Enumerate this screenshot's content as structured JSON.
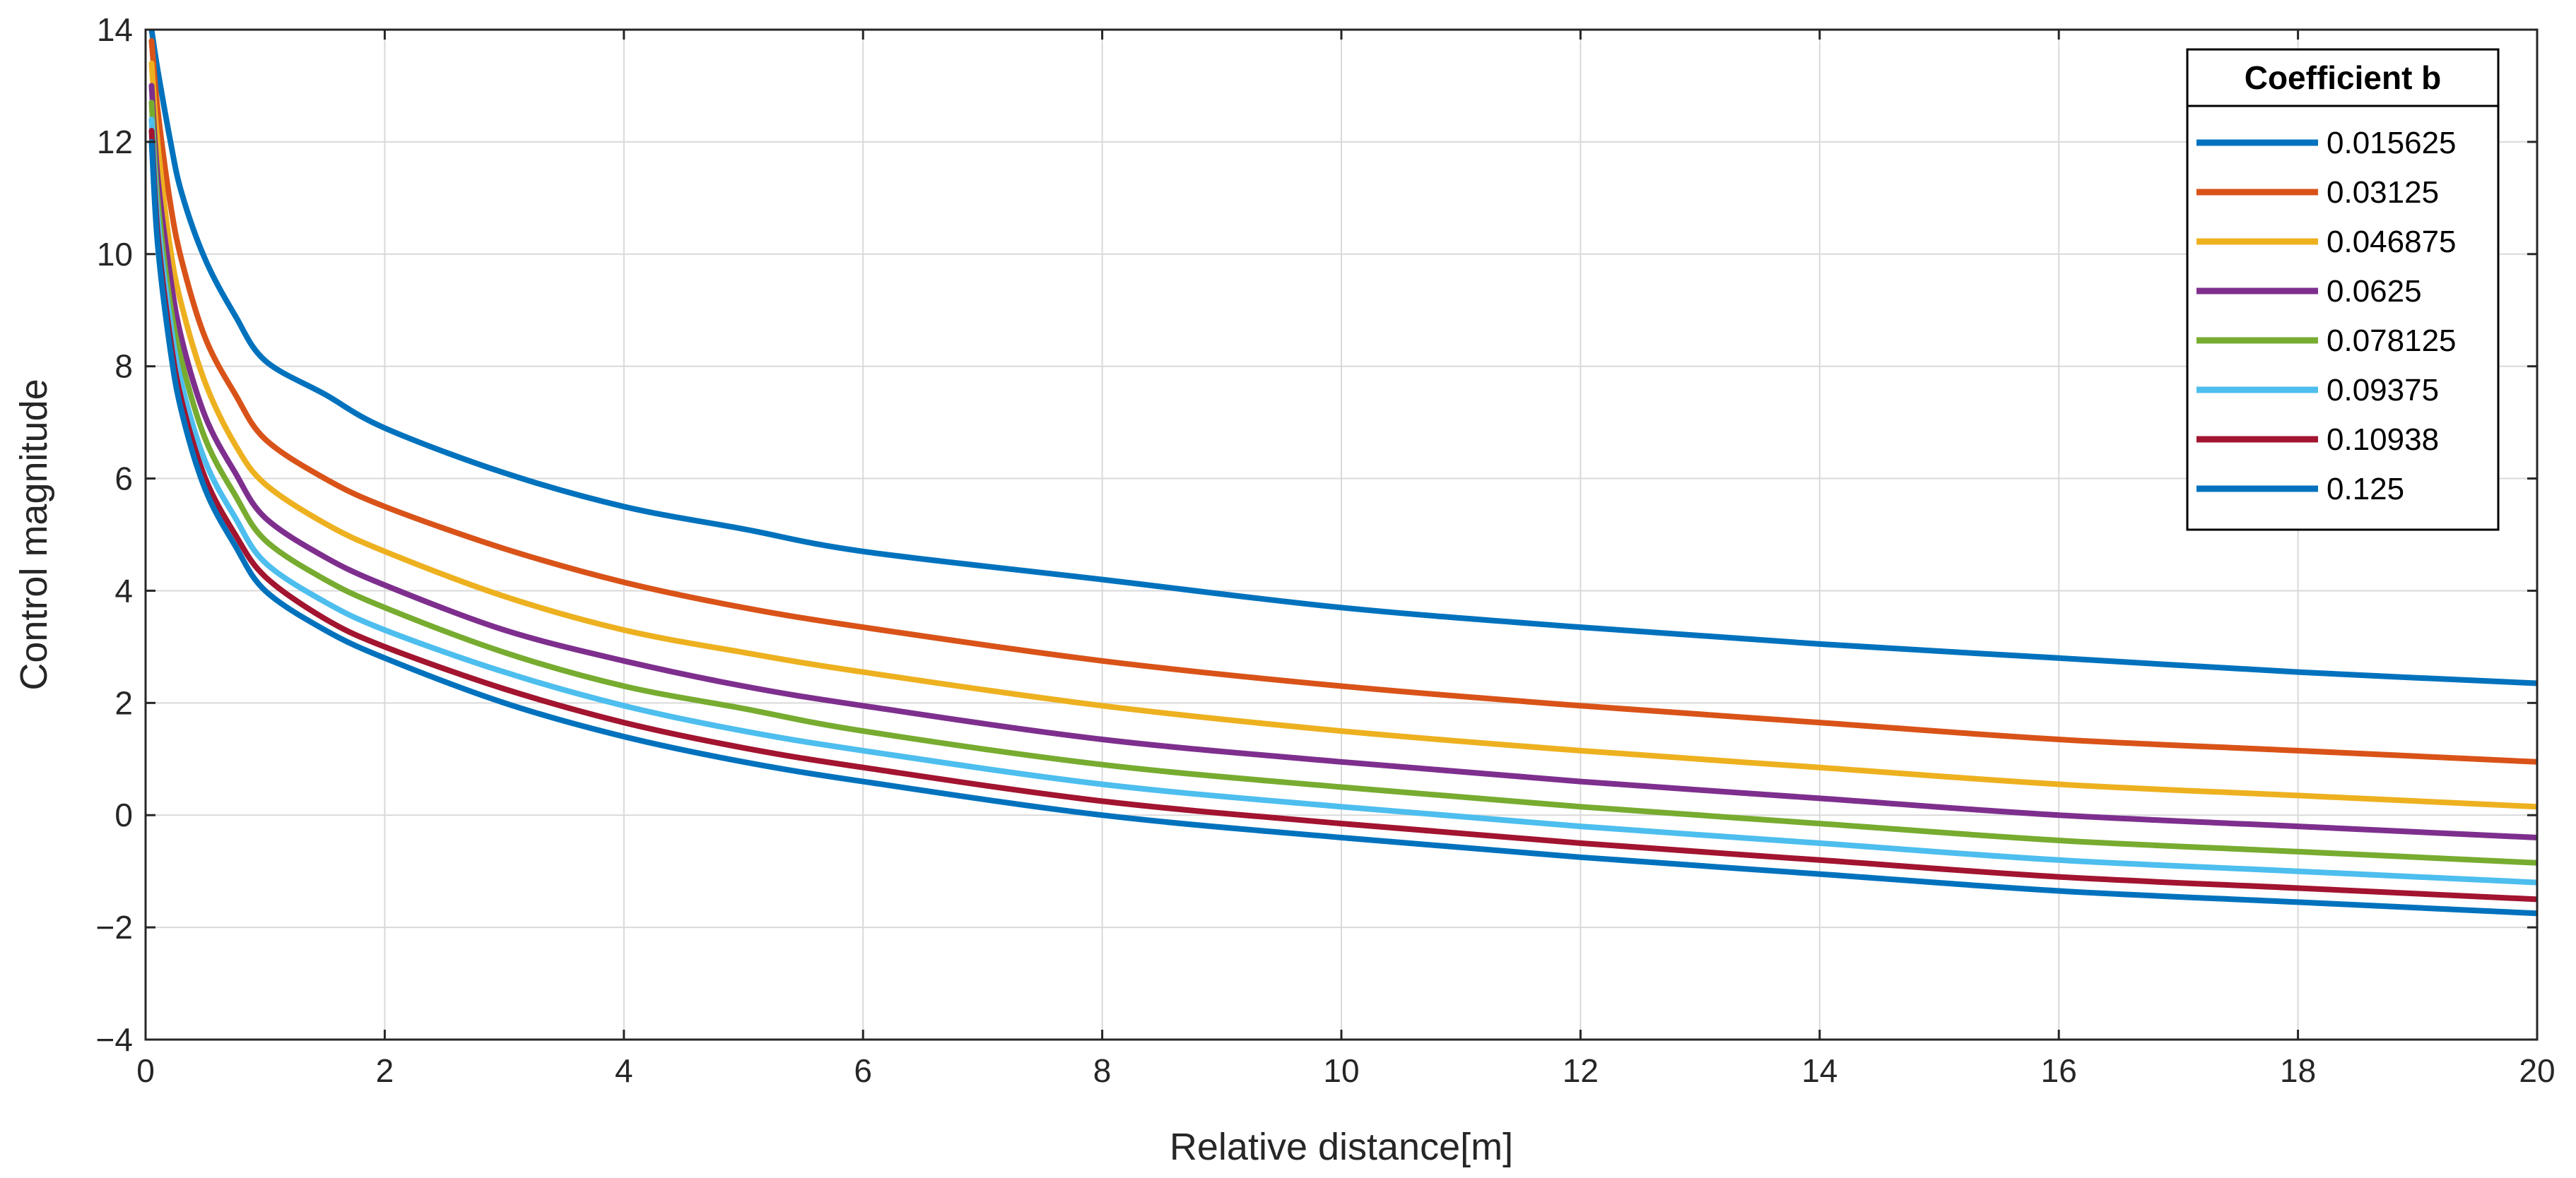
{
  "chart_data": {
    "type": "line",
    "title": "",
    "xlabel": "Relative distance[m]",
    "ylabel": "Control magnitude",
    "xlim": [
      0,
      20
    ],
    "ylim": [
      -4,
      14
    ],
    "xticks": [
      0,
      2,
      4,
      6,
      8,
      10,
      12,
      14,
      16,
      18,
      20
    ],
    "yticks": [
      -4,
      -2,
      0,
      2,
      4,
      6,
      8,
      10,
      12,
      14
    ],
    "xtick_labels": [
      "0",
      "2",
      "4",
      "6",
      "8",
      "10",
      "12",
      "14",
      "16",
      "18",
      "20"
    ],
    "ytick_labels": [
      "−4",
      "−2",
      "0",
      "2",
      "4",
      "6",
      "8",
      "10",
      "12",
      "14"
    ],
    "grid": true,
    "legend": {
      "title": "Coefficient b",
      "position": "top-right"
    },
    "x": [
      0.05,
      0.1,
      0.2,
      0.3,
      0.5,
      0.75,
      1,
      1.5,
      2,
      3,
      4,
      5,
      6,
      8,
      10,
      12,
      14,
      16,
      18,
      20
    ],
    "series": [
      {
        "name": "0.015625",
        "color": "#0072BD",
        "values": [
          14.0,
          13.3,
          12.1,
          11.1,
          9.9,
          8.9,
          8.1,
          7.5,
          6.9,
          6.1,
          5.5,
          5.1,
          4.7,
          4.2,
          3.7,
          3.35,
          3.05,
          2.8,
          2.55,
          2.35
        ]
      },
      {
        "name": "0.03125",
        "color": "#D95319",
        "values": [
          13.8,
          12.6,
          11.0,
          9.9,
          8.5,
          7.5,
          6.7,
          6.0,
          5.5,
          4.75,
          4.15,
          3.7,
          3.35,
          2.75,
          2.3,
          1.95,
          1.65,
          1.35,
          1.15,
          0.95
        ]
      },
      {
        "name": "0.046875",
        "color": "#EDB120",
        "values": [
          13.4,
          12.0,
          10.2,
          9.1,
          7.7,
          6.6,
          5.9,
          5.2,
          4.7,
          3.9,
          3.3,
          2.9,
          2.55,
          1.95,
          1.5,
          1.15,
          0.85,
          0.55,
          0.35,
          0.15
        ]
      },
      {
        "name": "0.0625",
        "color": "#7E2F8E",
        "values": [
          13.0,
          11.4,
          9.7,
          8.5,
          7.1,
          6.1,
          5.3,
          4.6,
          4.1,
          3.3,
          2.75,
          2.3,
          1.95,
          1.35,
          0.95,
          0.6,
          0.3,
          0.0,
          -0.2,
          -0.4
        ]
      },
      {
        "name": "0.078125",
        "color": "#77AC30",
        "values": [
          12.7,
          11.0,
          9.2,
          8.1,
          6.7,
          5.7,
          4.9,
          4.2,
          3.7,
          2.9,
          2.3,
          1.9,
          1.5,
          0.9,
          0.5,
          0.15,
          -0.15,
          -0.45,
          -0.65,
          -0.85
        ]
      },
      {
        "name": "0.09375",
        "color": "#4DBEEE",
        "values": [
          12.4,
          10.7,
          8.9,
          7.7,
          6.3,
          5.3,
          4.5,
          3.8,
          3.3,
          2.55,
          1.95,
          1.5,
          1.15,
          0.55,
          0.15,
          -0.2,
          -0.5,
          -0.8,
          -1.0,
          -1.2
        ]
      },
      {
        "name": "0.10938",
        "color": "#A2142F",
        "values": [
          12.2,
          10.4,
          8.6,
          7.4,
          6.0,
          5.0,
          4.25,
          3.5,
          3.0,
          2.25,
          1.65,
          1.2,
          0.85,
          0.25,
          -0.15,
          -0.5,
          -0.8,
          -1.1,
          -1.3,
          -1.5
        ]
      },
      {
        "name": "0.125",
        "color": "#0072BD",
        "values": [
          12.0,
          10.2,
          8.4,
          7.2,
          5.8,
          4.8,
          4.0,
          3.3,
          2.8,
          2.0,
          1.4,
          0.95,
          0.6,
          0.0,
          -0.4,
          -0.75,
          -1.05,
          -1.35,
          -1.55,
          -1.75
        ]
      }
    ]
  },
  "colors": {
    "axis": "#262626",
    "grid": "#d9d9d9",
    "background": "#ffffff"
  }
}
